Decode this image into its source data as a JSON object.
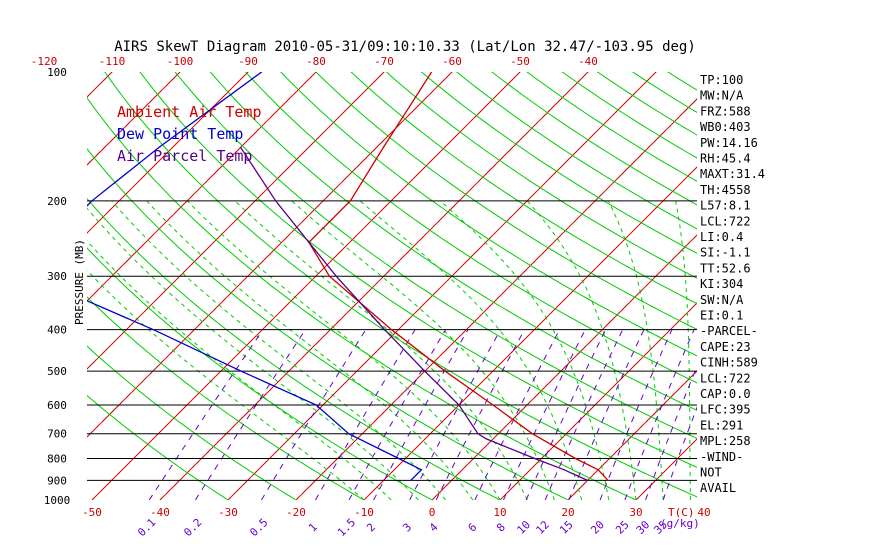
{
  "chart_data": {
    "type": "line",
    "title": "AIRS SkewT Diagram 2010-05-31/09:10:10.33 (Lat/Lon 32.47/-103.95 deg)",
    "ylabel": "PRESSURE (MB)",
    "xlabel": "T(C)",
    "mixing_ratio_unit": "(g/kg)",
    "top_axis_ticks": [
      "-120",
      "-110",
      "-100",
      "-90",
      "-80",
      "-70",
      "-60",
      "-50",
      "-40"
    ],
    "bottom_axis_ticks": [
      "-50",
      "-40",
      "-30",
      "-20",
      "-10",
      "0",
      "10",
      "20",
      "30",
      "40"
    ],
    "pressure_ticks": [
      "100",
      "200",
      "300",
      "400",
      "500",
      "600",
      "700",
      "800",
      "900",
      "1000"
    ],
    "mixing_ratio_ticks": [
      "0.1",
      "0.2",
      "0.5",
      "1",
      "1.5",
      "2",
      "3",
      "4",
      "6",
      "8",
      "10",
      "12",
      "15",
      "20",
      "25",
      "30",
      "35"
    ],
    "legend": [
      "Ambient Air Temp",
      "Dew Point Temp",
      "Air Parcel Temp"
    ],
    "colors": {
      "ambient": "#cc0000",
      "dewpoint": "#0000cc",
      "parcel": "#550088",
      "isotherm": "#cc0000",
      "dry_adiabat": "#00cc00",
      "moist_adiabat": "#00cc00",
      "mixing_ratio": "#6600cc",
      "isobar": "#000000"
    },
    "series": [
      {
        "name": "Ambient Air Temp",
        "points": [
          [
            100,
            -63
          ],
          [
            150,
            -59
          ],
          [
            200,
            -56
          ],
          [
            250,
            -56
          ],
          [
            300,
            -48
          ],
          [
            400,
            -31
          ],
          [
            500,
            -17
          ],
          [
            600,
            -5
          ],
          [
            700,
            5
          ],
          [
            800,
            15
          ],
          [
            850,
            20
          ],
          [
            900,
            23
          ]
        ]
      },
      {
        "name": "Dew Point Temp",
        "points": [
          [
            100,
            -88
          ],
          [
            150,
            -92
          ],
          [
            200,
            -94
          ],
          [
            250,
            -94
          ],
          [
            300,
            -92
          ],
          [
            400,
            -66
          ],
          [
            500,
            -47
          ],
          [
            600,
            -31
          ],
          [
            700,
            -22
          ],
          [
            800,
            -11
          ],
          [
            850,
            -6
          ],
          [
            900,
            -6
          ]
        ]
      },
      {
        "name": "Air Parcel Temp",
        "points": [
          [
            150,
            -80
          ],
          [
            200,
            -67
          ],
          [
            250,
            -56
          ],
          [
            300,
            -47
          ],
          [
            400,
            -32
          ],
          [
            500,
            -20
          ],
          [
            600,
            -10
          ],
          [
            700,
            -3
          ],
          [
            720,
            -1
          ],
          [
            800,
            9
          ],
          [
            850,
            15
          ],
          [
            900,
            20
          ]
        ]
      }
    ],
    "indices": [
      "TP:100",
      "MW:N/A",
      "FRZ:588",
      "WB0:403",
      "PW:14.16",
      "RH:45.4",
      "MAXT:31.4",
      "TH:4558",
      "L57:8.1",
      "LCL:722",
      "LI:0.4",
      "SI:-1.1",
      "TT:52.6",
      "KI:304",
      "SW:N/A",
      "EI:0.1",
      "-PARCEL-",
      "CAPE:23",
      "CINH:589",
      "LCL:722",
      "CAP:0.0",
      "LFC:395",
      "EL:291",
      "MPL:258",
      "-WIND-",
      "NOT",
      "AVAIL"
    ],
    "ylim": [
      1000,
      100
    ],
    "xlim_bottom": [
      -50,
      40
    ],
    "xlim_top": [
      -120,
      -40
    ],
    "grid": true,
    "y_scale": "log",
    "legend_position": "top-left"
  }
}
